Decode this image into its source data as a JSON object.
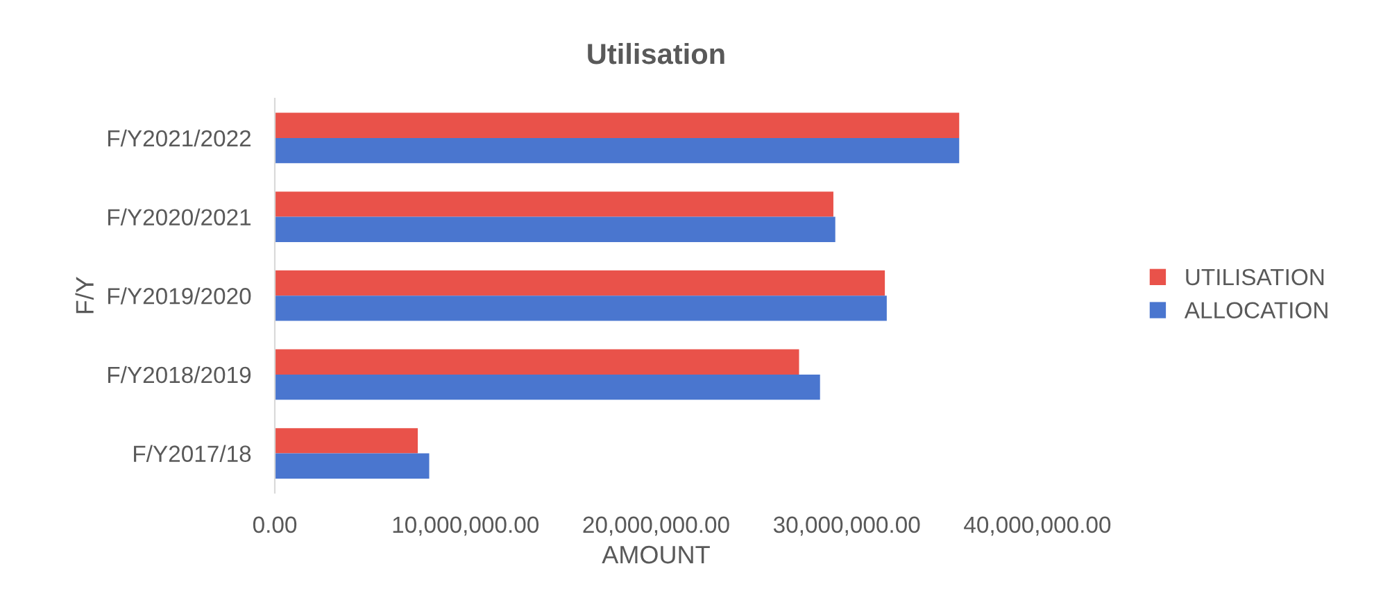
{
  "chart_data": {
    "type": "bar",
    "orientation": "horizontal",
    "title": "Utilisation",
    "xlabel": "AMOUNT",
    "ylabel": "F/Y",
    "categories": [
      "F/Y2021/2022",
      "F/Y2020/2021",
      "F/Y2019/2020",
      "F/Y2018/2019",
      "F/Y2017/18"
    ],
    "series": [
      {
        "name": "UTILISATION",
        "color": "#e9524a",
        "values": [
          35900000,
          29300000,
          32000000,
          27500000,
          7500000
        ]
      },
      {
        "name": "ALLOCATION",
        "color": "#4a76cf",
        "values": [
          35900000,
          29400000,
          32100000,
          28600000,
          8100000
        ]
      }
    ],
    "xlim": [
      0,
      40000000
    ],
    "xticks": [
      {
        "value": 0,
        "label": "0.00"
      },
      {
        "value": 10000000,
        "label": "10,000,000.00"
      },
      {
        "value": 20000000,
        "label": "20,000,000.00"
      },
      {
        "value": 30000000,
        "label": "30,000,000.00"
      },
      {
        "value": 40000000,
        "label": "40,000,000.00"
      }
    ],
    "grid": false,
    "legend": "right"
  }
}
